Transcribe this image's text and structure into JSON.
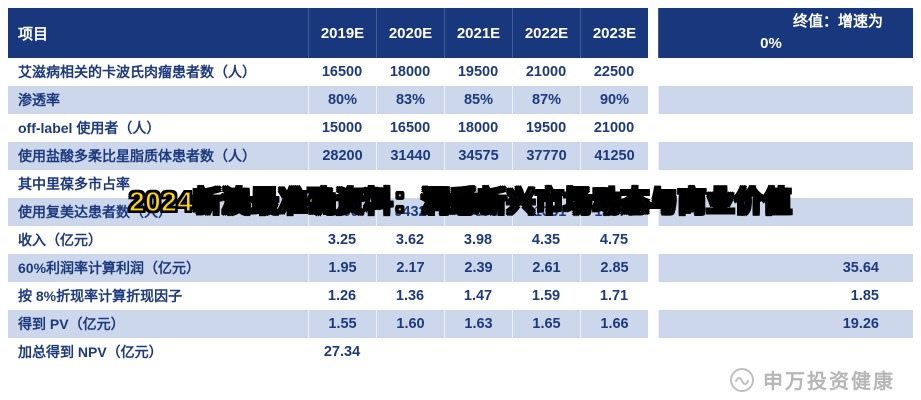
{
  "banner": {
    "text": "2024新澳最准确资料：洞悉新兴市场动态与商业价值",
    "text_color": "#ffd700",
    "outline_color": "#000000"
  },
  "watermark": {
    "text": "申万投资健康",
    "logo_icon": "circle-logo"
  },
  "colors": {
    "header_bg": "#18377d",
    "stripe_bg": "#cdd7ec",
    "row_bg": "#ffffff",
    "text": "#1c3a7d",
    "header_text": "#ffffff"
  },
  "chart_data": {
    "type": "table",
    "header": {
      "project": "项目",
      "years": [
        "2019E",
        "2020E",
        "2021E",
        "2022E",
        "2023E"
      ],
      "terminal_line1": "终值：增速为",
      "terminal_line2": "0%"
    },
    "rows": [
      {
        "label": "艾滋病相关的卡波氏肉瘤患者数（人）",
        "values": [
          "16500",
          "18000",
          "19500",
          "21000",
          "22500"
        ],
        "terminal": ""
      },
      {
        "label": "渗透率",
        "values": [
          "80%",
          "83%",
          "85%",
          "87%",
          "90%"
        ],
        "terminal": ""
      },
      {
        "label": "off-label 使用者（人）",
        "values": [
          "15000",
          "16500",
          "18000",
          "19500",
          "21000"
        ],
        "terminal": ""
      },
      {
        "label": "使用盐酸多柔比星脂质体患者数（人）",
        "values": [
          "28200",
          "31440",
          "34575",
          "37770",
          "41250"
        ],
        "terminal": ""
      },
      {
        "label": "其中里葆多市占率",
        "values": [
          "",
          "",
          "",
          "",
          ""
        ],
        "terminal": ""
      },
      {
        "label": "使用复美达患者数（人）",
        "values": [
          "6460",
          "9432",
          "10373",
          "11331",
          "12375"
        ],
        "terminal": ""
      },
      {
        "label": "收入（亿元）",
        "values": [
          "3.25",
          "3.62",
          "3.98",
          "4.35",
          "4.75"
        ],
        "terminal": ""
      },
      {
        "label": "60%利润率计算利润（亿元）",
        "values": [
          "1.95",
          "2.17",
          "2.39",
          "2.61",
          "2.85"
        ],
        "terminal": "35.64"
      },
      {
        "label": "按 8%折现率计算折现因子",
        "values": [
          "1.26",
          "1.36",
          "1.47",
          "1.59",
          "1.71"
        ],
        "terminal": "1.85"
      },
      {
        "label": "得到 PV（亿元）",
        "values": [
          "1.55",
          "1.60",
          "1.63",
          "1.65",
          "1.66"
        ],
        "terminal": "19.26"
      },
      {
        "label": "加总得到 NPV（亿元）",
        "values": [
          "27.34",
          "",
          "",
          "",
          ""
        ],
        "terminal": ""
      }
    ]
  }
}
